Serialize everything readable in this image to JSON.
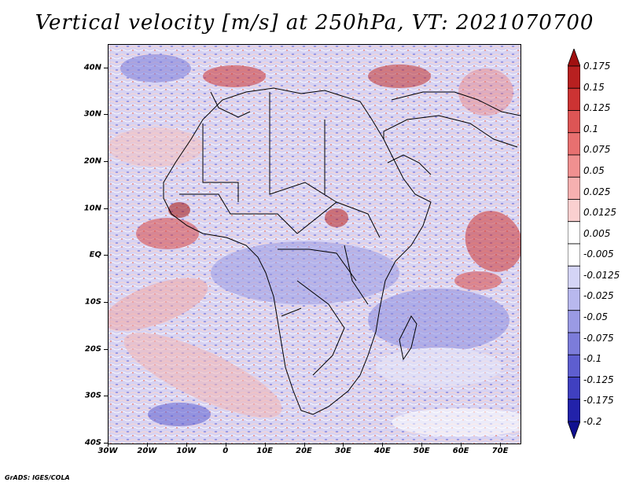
{
  "title": "Vertical velocity [m/s] at 250hPa, VT: 2021070700",
  "credit": "GrADS: IGES/COLA",
  "y_ticks": [
    "40N",
    "30N",
    "20N",
    "10N",
    "EQ",
    "10S",
    "20S",
    "30S",
    "40S"
  ],
  "x_ticks": [
    "30W",
    "20W",
    "10W",
    "0",
    "10E",
    "20E",
    "30E",
    "40E",
    "50E",
    "60E",
    "70E"
  ],
  "colorbar": {
    "labels": [
      "0.175",
      "0.15",
      "0.125",
      "0.1",
      "0.075",
      "0.05",
      "0.025",
      "0.0125",
      "0.005",
      "-0.005",
      "-0.0125",
      "-0.025",
      "-0.05",
      "-0.075",
      "-0.1",
      "-0.125",
      "-0.175",
      "-0.2"
    ],
    "colors": [
      "#a01010",
      "#b82020",
      "#cc3333",
      "#dd5555",
      "#e87070",
      "#f09090",
      "#f6b0b0",
      "#fad0d0",
      "#ffffff",
      "#ffffff",
      "#d4d4f6",
      "#b8b8ee",
      "#9a9ae4",
      "#7c7cda",
      "#5e5ed0",
      "#4040c0",
      "#2222aa",
      "#101090"
    ]
  },
  "map": {
    "lon_range": [
      -30,
      75
    ],
    "lat_range": [
      -40,
      45
    ],
    "base_color": "#dcd8f4"
  }
}
